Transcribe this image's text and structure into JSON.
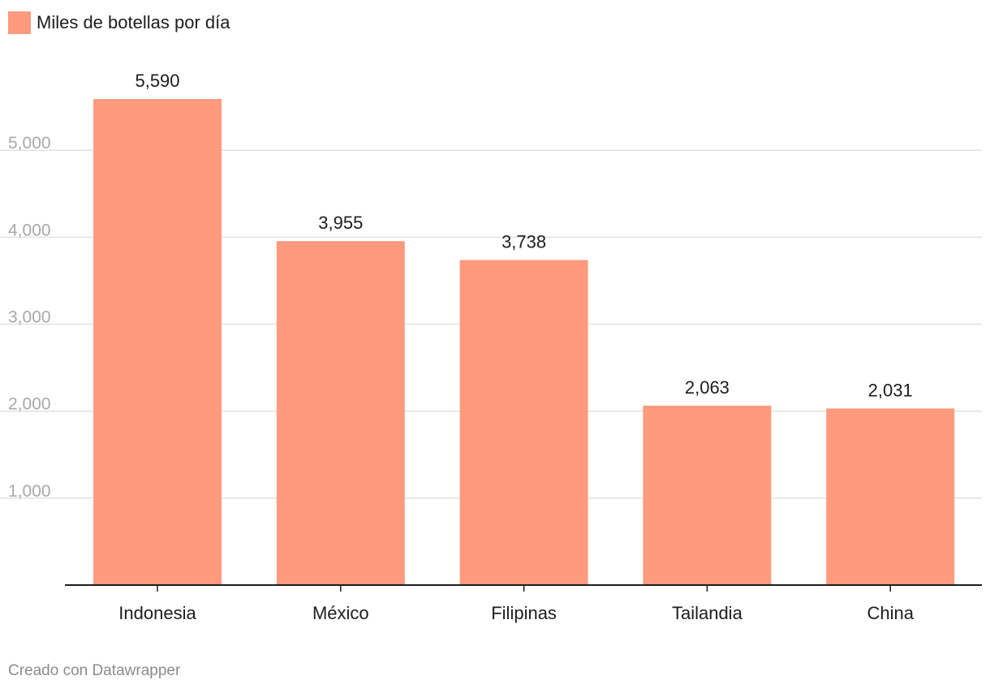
{
  "legend": {
    "label": "Miles de botellas por día",
    "color": "#ff9a7e"
  },
  "footer": {
    "credit": "Creado con Datawrapper"
  },
  "colors": {
    "bar": "#ff9a7e",
    "grid": "#e1e1e1",
    "axis": "#1d1d1d",
    "tick_label": "#a8a8a8",
    "value_label": "#1d1d1d"
  },
  "chart_data": {
    "type": "bar",
    "categories": [
      "Indonesia",
      "México",
      "Filipinas",
      "Tailandia",
      "China"
    ],
    "series": [
      {
        "name": "Miles de botellas por día",
        "values": [
          5590,
          3955,
          3738,
          2063,
          2031
        ]
      }
    ],
    "value_labels": [
      "5,590",
      "3,955",
      "3,738",
      "2,063",
      "2,031"
    ],
    "yticks": [
      1000,
      2000,
      3000,
      4000,
      5000
    ],
    "ytick_labels": [
      "1,000",
      "2,000",
      "3,000",
      "4,000",
      "5,000"
    ],
    "ylim": [
      0,
      5590
    ],
    "grid": true,
    "legend_position": "top-left",
    "title": "",
    "xlabel": "",
    "ylabel": ""
  }
}
